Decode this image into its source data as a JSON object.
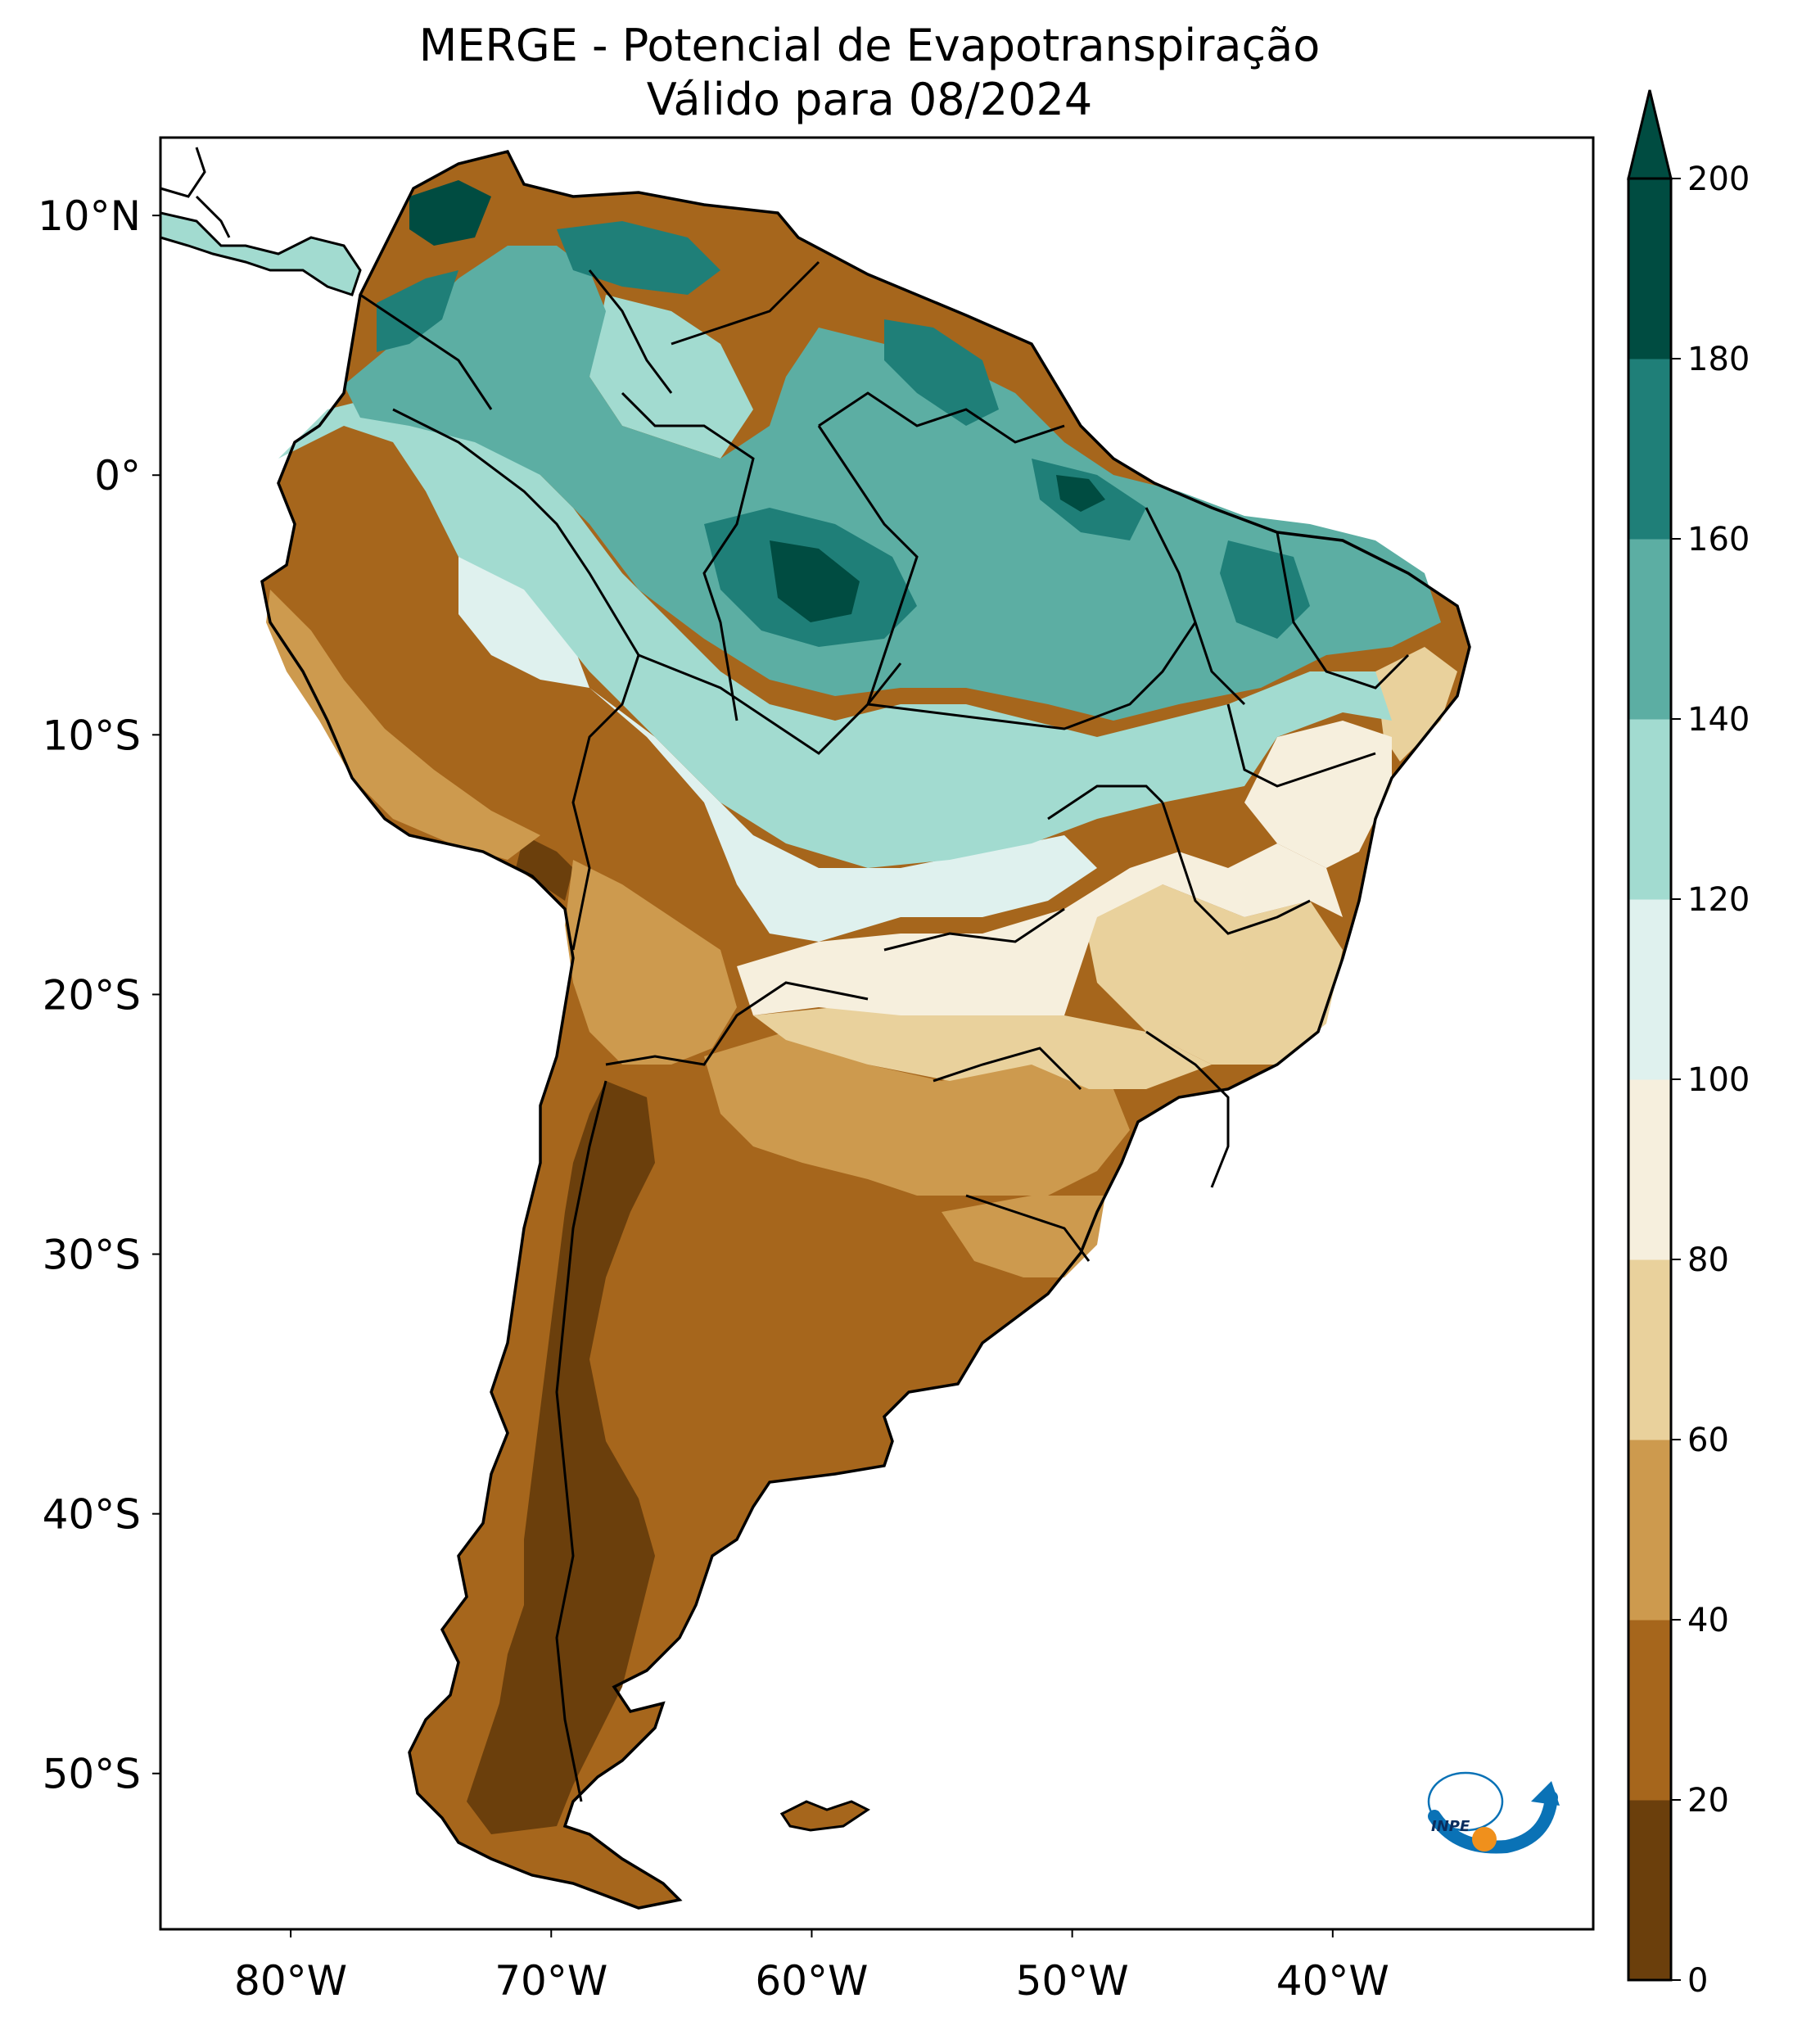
{
  "title": {
    "line1": "MERGE - Potencial de Evapotranspiração",
    "line2": "Válido para 08/2024"
  },
  "map": {
    "region": "South America",
    "lon_range": [
      -85,
      -30
    ],
    "lat_range": [
      -56,
      13
    ],
    "lat_ticks": [
      {
        "value": 10,
        "label": "10°N"
      },
      {
        "value": 0,
        "label": "0°"
      },
      {
        "value": -10,
        "label": "10°S"
      },
      {
        "value": -20,
        "label": "20°S"
      },
      {
        "value": -30,
        "label": "30°S"
      },
      {
        "value": -40,
        "label": "40°S"
      },
      {
        "value": -50,
        "label": "50°S"
      }
    ],
    "lon_ticks": [
      {
        "value": -80,
        "label": "80°W"
      },
      {
        "value": -70,
        "label": "70°W"
      },
      {
        "value": -60,
        "label": "60°W"
      },
      {
        "value": -50,
        "label": "50°W"
      },
      {
        "value": -40,
        "label": "40°W"
      }
    ]
  },
  "colorbar": {
    "levels": [
      0,
      20,
      40,
      60,
      80,
      100,
      120,
      140,
      160,
      180,
      200
    ],
    "labels": [
      "0",
      "20",
      "40",
      "60",
      "80",
      "100",
      "120",
      "140",
      "160",
      "180",
      "200"
    ],
    "colors": [
      "#6b3f0c",
      "#a6661c",
      "#cd9a4e",
      "#e9d19c",
      "#f6efdd",
      "#dff1ee",
      "#a2dbd0",
      "#5caea3",
      "#1f7f78",
      "#004c41"
    ],
    "extend": "max"
  },
  "logo": {
    "text": "INPE",
    "colors": {
      "arc": "#0a72b6",
      "dot": "#f0901c"
    }
  }
}
